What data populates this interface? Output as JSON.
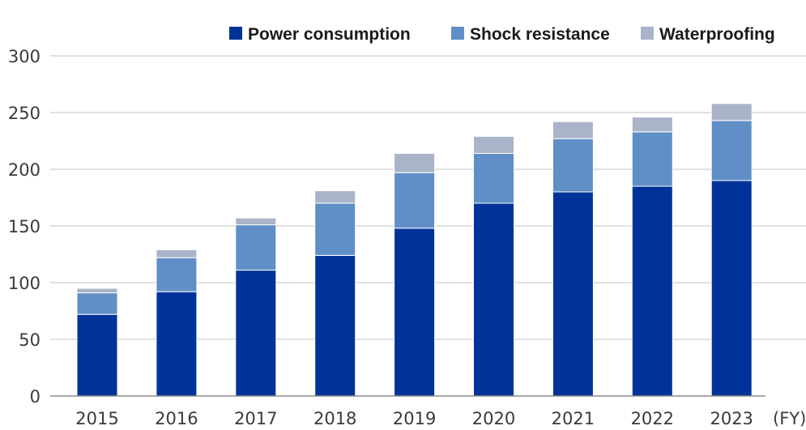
{
  "chart_data": {
    "type": "bar",
    "stacked": true,
    "categories": [
      "2015",
      "2016",
      "2017",
      "2018",
      "2019",
      "2020",
      "2021",
      "2022",
      "2023"
    ],
    "x_unit_label": "(FY)",
    "ylim": [
      0,
      300
    ],
    "yticks": [
      0,
      50,
      100,
      150,
      200,
      250,
      300
    ],
    "grid": "horizontal",
    "legend_position": "top-right",
    "series": [
      {
        "name": "Power consumption",
        "color": "#003399",
        "values": [
          72,
          92,
          111,
          124,
          148,
          170,
          180,
          185,
          190
        ]
      },
      {
        "name": "Shock resistance",
        "color": "#5f8fc6",
        "values": [
          19,
          30,
          40,
          46,
          49,
          44,
          47,
          48,
          53
        ]
      },
      {
        "name": "Waterproofing",
        "color": "#aab4c8",
        "values": [
          4,
          7,
          6,
          11,
          17,
          15,
          15,
          13,
          15
        ]
      }
    ]
  }
}
